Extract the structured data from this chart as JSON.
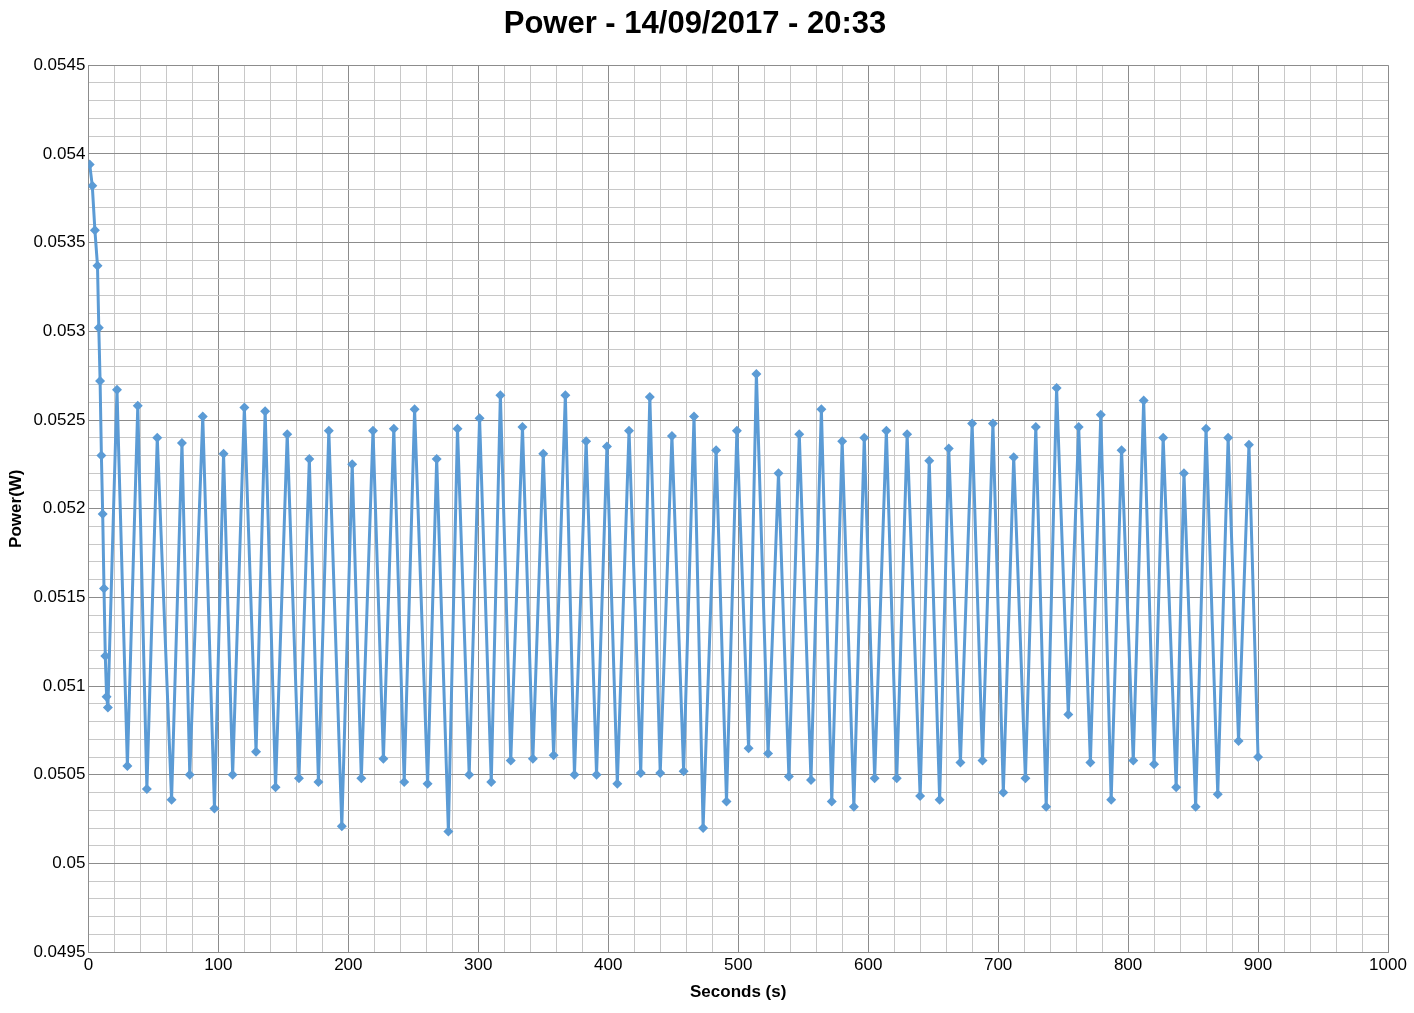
{
  "chart_data": {
    "type": "line",
    "title": "Power - 14/09/2017 - 20:33",
    "xlabel": "Seconds (s)",
    "ylabel": "Power(W)",
    "xlim": [
      0,
      1000
    ],
    "ylim": [
      0.0495,
      0.0545
    ],
    "xticks": [
      0,
      {
        "value": 20,
        "label": null
      },
      {
        "value": 40,
        "label": null
      },
      {
        "value": 60,
        "label": null
      },
      {
        "value": 80,
        "label": null
      },
      100,
      {
        "value": 120,
        "label": null
      },
      {
        "value": 140,
        "label": null
      },
      {
        "value": 160,
        "label": null
      },
      {
        "value": 180,
        "label": null
      },
      200,
      {
        "value": 220,
        "label": null
      },
      {
        "value": 240,
        "label": null
      },
      {
        "value": 260,
        "label": null
      },
      {
        "value": 280,
        "label": null
      },
      300,
      {
        "value": 320,
        "label": null
      },
      {
        "value": 340,
        "label": null
      },
      {
        "value": 360,
        "label": null
      },
      {
        "value": 380,
        "label": null
      },
      400,
      {
        "value": 420,
        "label": null
      },
      {
        "value": 440,
        "label": null
      },
      {
        "value": 460,
        "label": null
      },
      {
        "value": 480,
        "label": null
      },
      500,
      {
        "value": 520,
        "label": null
      },
      {
        "value": 540,
        "label": null
      },
      {
        "value": 560,
        "label": null
      },
      {
        "value": 580,
        "label": null
      },
      600,
      {
        "value": 620,
        "label": null
      },
      {
        "value": 640,
        "label": null
      },
      {
        "value": 660,
        "label": null
      },
      {
        "value": 680,
        "label": null
      },
      700,
      {
        "value": 720,
        "label": null
      },
      {
        "value": 740,
        "label": null
      },
      {
        "value": 760,
        "label": null
      },
      {
        "value": 780,
        "label": null
      },
      800,
      {
        "value": 820,
        "label": null
      },
      {
        "value": 840,
        "label": null
      },
      {
        "value": 860,
        "label": null
      },
      {
        "value": 880,
        "label": null
      },
      900,
      {
        "value": 920,
        "label": null
      },
      {
        "value": 940,
        "label": null
      },
      {
        "value": 960,
        "label": null
      },
      {
        "value": 980,
        "label": null
      },
      1000
    ],
    "yticks": [
      0.0495,
      {
        "value": 0.0496,
        "label": null
      },
      {
        "value": 0.0497,
        "label": null
      },
      {
        "value": 0.0498,
        "label": null
      },
      {
        "value": 0.0499,
        "label": null
      },
      0.05,
      {
        "value": 0.0501,
        "label": null
      },
      {
        "value": 0.0502,
        "label": null
      },
      {
        "value": 0.0503,
        "label": null
      },
      {
        "value": 0.0504,
        "label": null
      },
      0.0505,
      {
        "value": 0.0506,
        "label": null
      },
      {
        "value": 0.0507,
        "label": null
      },
      {
        "value": 0.0508,
        "label": null
      },
      {
        "value": 0.0509,
        "label": null
      },
      0.051,
      {
        "value": 0.0511,
        "label": null
      },
      {
        "value": 0.0512,
        "label": null
      },
      {
        "value": 0.0513,
        "label": null
      },
      {
        "value": 0.0514,
        "label": null
      },
      0.0515,
      {
        "value": 0.0516,
        "label": null
      },
      {
        "value": 0.0517,
        "label": null
      },
      {
        "value": 0.0518,
        "label": null
      },
      {
        "value": 0.0519,
        "label": null
      },
      0.052,
      {
        "value": 0.0521,
        "label": null
      },
      {
        "value": 0.0522,
        "label": null
      },
      {
        "value": 0.0523,
        "label": null
      },
      {
        "value": 0.0524,
        "label": null
      },
      0.0525,
      {
        "value": 0.0526,
        "label": null
      },
      {
        "value": 0.0527,
        "label": null
      },
      {
        "value": 0.0528,
        "label": null
      },
      {
        "value": 0.0529,
        "label": null
      },
      0.053,
      {
        "value": 0.0531,
        "label": null
      },
      {
        "value": 0.0532,
        "label": null
      },
      {
        "value": 0.0533,
        "label": null
      },
      {
        "value": 0.0534,
        "label": null
      },
      0.0535,
      {
        "value": 0.0536,
        "label": null
      },
      {
        "value": 0.0537,
        "label": null
      },
      {
        "value": 0.0538,
        "label": null
      },
      {
        "value": 0.0539,
        "label": null
      },
      0.054,
      {
        "value": 0.0541,
        "label": null
      },
      {
        "value": 0.0542,
        "label": null
      },
      {
        "value": 0.0543,
        "label": null
      },
      {
        "value": 0.0544,
        "label": null
      },
      0.0545
    ],
    "grid": true,
    "legend": false,
    "marker": "diamond",
    "line_style": "solid",
    "series": [
      {
        "color": "#5b9bd5",
        "x": [
          1,
          3,
          5,
          7,
          8,
          9,
          10,
          11,
          12,
          13,
          14,
          15,
          22,
          30,
          38,
          45,
          53,
          64,
          72,
          78,
          88,
          97,
          104,
          111,
          120,
          129,
          136,
          144,
          153,
          162,
          170,
          177,
          185,
          195,
          203,
          210,
          219,
          227,
          235,
          243,
          251,
          261,
          268,
          277,
          284,
          293,
          301,
          310,
          317,
          325,
          334,
          342,
          350,
          358,
          367,
          374,
          383,
          391,
          399,
          407,
          416,
          425,
          432,
          440,
          449,
          458,
          466,
          473,
          483,
          491,
          499,
          508,
          514,
          523,
          531,
          539,
          547,
          556,
          564,
          572,
          580,
          589,
          597,
          605,
          614,
          622,
          630,
          640,
          647,
          655,
          662,
          671,
          680,
          688,
          696,
          704,
          712,
          721,
          729,
          737,
          745,
          754,
          762,
          771,
          779,
          787,
          795,
          804,
          812,
          820,
          827,
          837,
          843,
          852,
          860,
          869,
          877,
          885,
          893,
          900
        ],
        "values": [
          0.05394,
          0.05382,
          0.05357,
          0.05337,
          0.05302,
          0.05272,
          0.0523,
          0.05197,
          0.05155,
          0.05117,
          0.05094,
          0.05088,
          0.05267,
          0.05055,
          0.05258,
          0.05042,
          0.0524,
          0.05036,
          0.05237,
          0.0505,
          0.05252,
          0.05031,
          0.05231,
          0.0505,
          0.05257,
          0.05063,
          0.05255,
          0.05043,
          0.05242,
          0.05048,
          0.05228,
          0.05046,
          0.05244,
          0.05021,
          0.05225,
          0.05048,
          0.05244,
          0.05059,
          0.05245,
          0.05046,
          0.05256,
          0.05045,
          0.05228,
          0.05018,
          0.05245,
          0.0505,
          0.05251,
          0.05046,
          0.05264,
          0.05058,
          0.05246,
          0.05059,
          0.05231,
          0.05061,
          0.05264,
          0.0505,
          0.05238,
          0.0505,
          0.05235,
          0.05045,
          0.05244,
          0.05051,
          0.05263,
          0.05051,
          0.05241,
          0.05052,
          0.05252,
          0.0502,
          0.05233,
          0.05035,
          0.05244,
          0.05065,
          0.05276,
          0.05062,
          0.0522,
          0.05049,
          0.05242,
          0.05047,
          0.05256,
          0.05035,
          0.05238,
          0.05032,
          0.0524,
          0.05048,
          0.05244,
          0.05048,
          0.05242,
          0.05038,
          0.05227,
          0.05036,
          0.05234,
          0.05057,
          0.05248,
          0.05058,
          0.05248,
          0.0504,
          0.05229,
          0.05048,
          0.05246,
          0.05032,
          0.05268,
          0.05084,
          0.05246,
          0.05057,
          0.05253,
          0.05036,
          0.05233,
          0.05058,
          0.05261,
          0.05056,
          0.0524,
          0.05043,
          0.0522,
          0.05032,
          0.05245,
          0.05039,
          0.0524,
          0.05069,
          0.05236,
          0.0506
        ]
      }
    ]
  }
}
